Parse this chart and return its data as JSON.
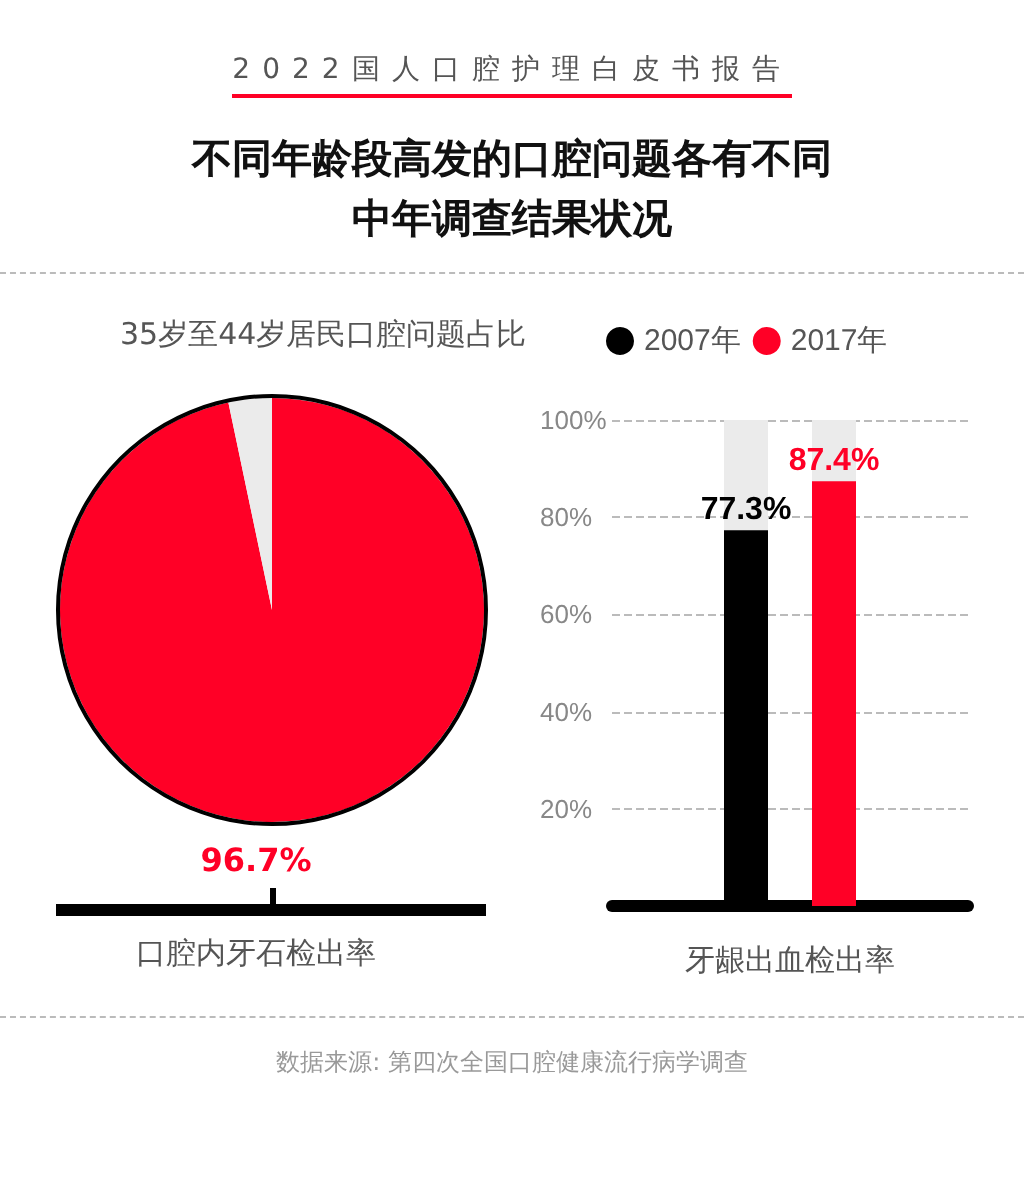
{
  "chart_data": [
    {
      "type": "pie",
      "title": "不同年龄段高发的口腔问题各有不同中年调查结果状况",
      "subtitle": "35岁至44岁居民口腔问题占比",
      "annotations": [
        "2022国人口腔护理白皮书报告",
        "数据来源: 第四次全国口腔健康流行病学调查"
      ],
      "xlabel": "口腔内牙石检出率",
      "categories": [
        null,
        null
      ],
      "values": [
        96.7,
        3.3
      ],
      "colors": [
        "#ff0026",
        "#ebebeb"
      ],
      "value_labels": [
        "96.7%",
        null
      ]
    },
    {
      "type": "bar",
      "xlabel": "牙龈出血检出率",
      "categories": [
        null
      ],
      "series": [
        {
          "name": "2007年",
          "color": "#000000",
          "values": [
            77.3
          ],
          "value_labels": [
            "77.3%"
          ]
        },
        {
          "name": "2017年",
          "color": "#ff0026",
          "values": [
            87.4
          ],
          "value_labels": [
            "87.4%"
          ]
        }
      ],
      "ylim": [
        0,
        100
      ],
      "yticks": [
        {
          "value": 0,
          "label": null
        },
        {
          "value": 20,
          "label": "20%"
        },
        {
          "value": 40,
          "label": "40%"
        },
        {
          "value": 60,
          "label": "60%"
        },
        {
          "value": 80,
          "label": "80%"
        },
        {
          "value": 100,
          "label": "100%"
        }
      ],
      "grid": "y",
      "legend": "top"
    }
  ]
}
